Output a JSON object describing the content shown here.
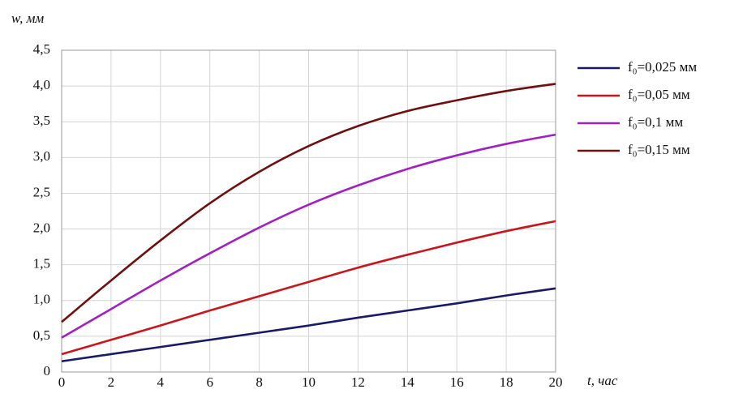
{
  "chart_data": {
    "type": "line",
    "ylabel": "w, мм",
    "xlabel": "t, час",
    "x": [
      0,
      2,
      4,
      6,
      8,
      10,
      12,
      14,
      16,
      18,
      20
    ],
    "series": [
      {
        "name": "f₀=0,025 мм",
        "color": "#1b1a66",
        "values": [
          0.15,
          0.25,
          0.35,
          0.45,
          0.55,
          0.65,
          0.76,
          0.86,
          0.96,
          1.07,
          1.17
        ]
      },
      {
        "name": "f₀=0,05 мм",
        "color": "#c8161d",
        "values": [
          0.25,
          0.45,
          0.65,
          0.86,
          1.06,
          1.26,
          1.46,
          1.64,
          1.81,
          1.97,
          2.11
        ]
      },
      {
        "name": "f₀=0,1 мм",
        "color": "#a020c0",
        "values": [
          0.48,
          0.88,
          1.28,
          1.66,
          2.02,
          2.34,
          2.61,
          2.84,
          3.03,
          3.19,
          3.32
        ]
      },
      {
        "name": "f₀=0,15 мм",
        "color": "#6e1010",
        "values": [
          0.7,
          1.28,
          1.84,
          2.36,
          2.8,
          3.16,
          3.44,
          3.65,
          3.8,
          3.93,
          4.03
        ]
      }
    ],
    "xlim": [
      0,
      20
    ],
    "ylim": [
      0,
      4.5
    ],
    "xticks": [
      0,
      2,
      4,
      6,
      8,
      10,
      12,
      14,
      16,
      18,
      20
    ],
    "yticks": [
      0,
      {
        "value": 0.5,
        "label": "0,5"
      },
      {
        "value": 1,
        "label": "1,0"
      },
      {
        "value": 1.5,
        "label": "1,5"
      },
      {
        "value": 2,
        "label": "2,0"
      },
      {
        "value": 2.5,
        "label": "2,5"
      },
      {
        "value": 3,
        "label": "3,0"
      },
      {
        "value": 3.5,
        "label": "3,5"
      },
      {
        "value": 4,
        "label": "4,0"
      },
      {
        "value": 4.5,
        "label": "4,5"
      }
    ],
    "grid": true,
    "legend": "right"
  }
}
